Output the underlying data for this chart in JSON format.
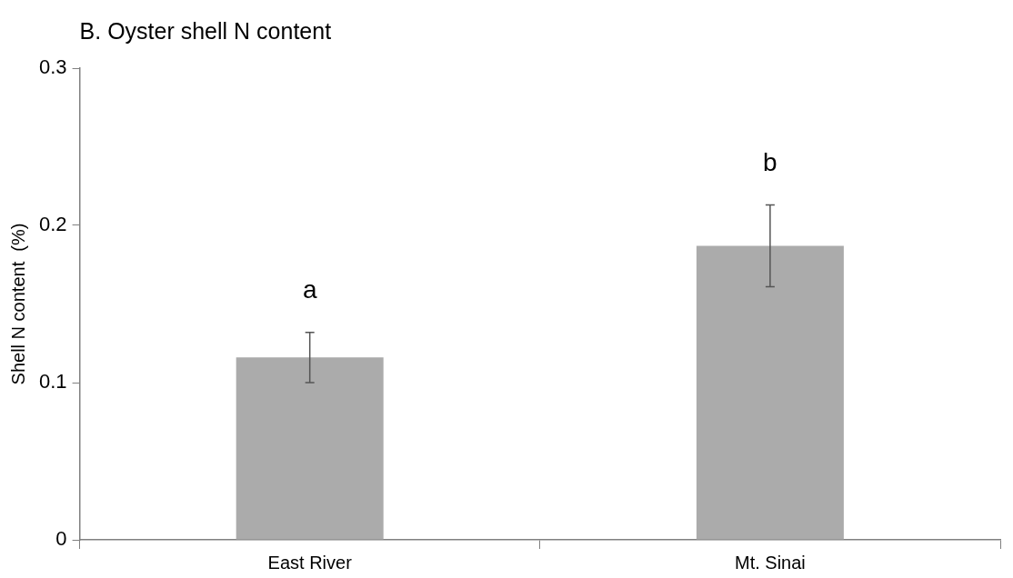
{
  "chart_data": {
    "type": "bar",
    "title": "B. Oyster shell N content",
    "ylabel": "Shell N content  (%)",
    "categories": [
      "East River",
      "Mt. Sinai"
    ],
    "values": [
      0.116,
      0.187
    ],
    "errors": [
      0.016,
      0.026
    ],
    "color": "#ababab",
    "ylim": [
      0,
      0.3
    ],
    "yticks": [
      0,
      0.1,
      0.2,
      0.3
    ],
    "annotations": [
      "a",
      "b"
    ]
  }
}
